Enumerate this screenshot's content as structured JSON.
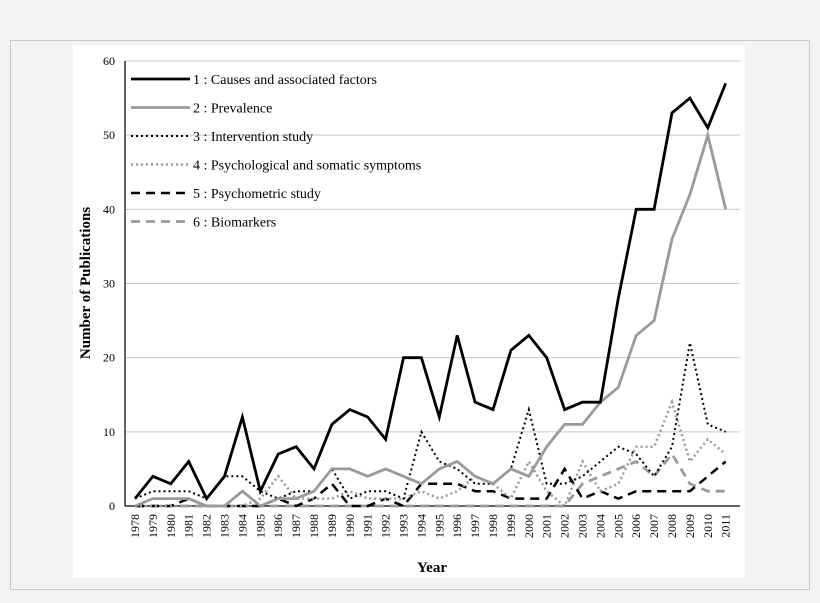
{
  "chart_data": {
    "type": "line",
    "xlabel": "Year",
    "ylabel": "Number of Publications",
    "ylim": [
      0,
      60
    ],
    "yticks": [
      0,
      10,
      20,
      30,
      40,
      50,
      60
    ],
    "grid": "horizontal",
    "legend_position": "top-left",
    "categories": [
      "1978",
      "1979",
      "1980",
      "1981",
      "1982",
      "1983",
      "1984",
      "1985",
      "1986",
      "1987",
      "1988",
      "1989",
      "1990",
      "1991",
      "1992",
      "1993",
      "1994",
      "1995",
      "1996",
      "1997",
      "1998",
      "1999",
      "2000",
      "2001",
      "2002",
      "2003",
      "2004",
      "2005",
      "2006",
      "2007",
      "2008",
      "2009",
      "2010",
      "2011"
    ],
    "series": [
      {
        "name": "1 : Causes and associated factors",
        "color": "#000000",
        "style": "solid",
        "width": 2.8,
        "values": [
          1,
          4,
          3,
          6,
          1,
          4,
          12,
          2,
          7,
          8,
          5,
          11,
          13,
          12,
          9,
          20,
          20,
          12,
          23,
          14,
          13,
          21,
          23,
          20,
          13,
          14,
          14,
          28,
          40,
          40,
          53,
          55,
          51,
          57
        ]
      },
      {
        "name": "2 : Prevalence",
        "color": "#9a9a9a",
        "style": "solid",
        "width": 2.8,
        "values": [
          0,
          1,
          1,
          1,
          0,
          0,
          2,
          0,
          1,
          1,
          2,
          5,
          5,
          4,
          5,
          4,
          3,
          5,
          6,
          4,
          3,
          5,
          4,
          8,
          11,
          11,
          14,
          16,
          23,
          25,
          36,
          42,
          50,
          40
        ]
      },
      {
        "name": "3 : Intervention study",
        "color": "#000000",
        "style": "dotted",
        "width": 2,
        "values": [
          1,
          2,
          2,
          2,
          1,
          4,
          4,
          2,
          1,
          2,
          2,
          5,
          1,
          2,
          2,
          1,
          10,
          6,
          5,
          3,
          3,
          5,
          13,
          3,
          3,
          4,
          6,
          8,
          7,
          4,
          8,
          22,
          11,
          10
        ]
      },
      {
        "name": "4 : Psychological and somatic symptoms",
        "color": "#9a9a9a",
        "style": "dotted",
        "width": 2.5,
        "values": [
          0,
          0,
          0,
          0,
          0,
          0,
          0,
          1,
          4,
          1,
          1,
          1,
          2,
          1,
          1,
          1,
          2,
          1,
          2,
          4,
          3,
          1,
          6,
          2,
          0,
          6,
          2,
          3,
          8,
          8,
          14,
          6,
          9,
          7
        ]
      },
      {
        "name": "5 : Psychometric study",
        "color": "#000000",
        "style": "dashed",
        "width": 2.5,
        "values": [
          0,
          0,
          0,
          1,
          0,
          0,
          0,
          0,
          1,
          0,
          1,
          3,
          0,
          0,
          1,
          0,
          3,
          3,
          3,
          2,
          2,
          1,
          1,
          1,
          5,
          1,
          2,
          1,
          2,
          2,
          2,
          2,
          4,
          6
        ]
      },
      {
        "name": "6 : Biomarkers",
        "color": "#9a9a9a",
        "style": "dashed",
        "width": 2.8,
        "values": [
          0,
          0,
          0,
          0,
          0,
          0,
          0,
          0,
          0,
          0,
          0,
          0,
          0,
          0,
          0,
          0,
          0,
          0,
          0,
          0,
          0,
          0,
          0,
          0,
          0,
          3,
          4,
          5,
          6,
          4,
          7,
          3,
          2,
          2
        ]
      }
    ]
  }
}
